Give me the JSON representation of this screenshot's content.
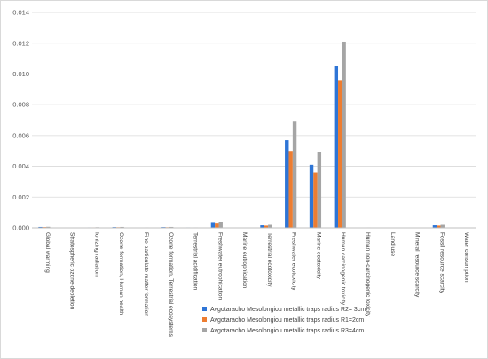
{
  "chart_data": {
    "type": "bar",
    "title": "",
    "xlabel": "",
    "ylabel": "",
    "ylim": [
      0,
      0.014
    ],
    "yticks": [
      "0.000",
      "0.002",
      "0.004",
      "0.006",
      "0.008",
      "0.010",
      "0.012",
      "0.014"
    ],
    "grid": true,
    "legend_position": "bottom-center",
    "categories": [
      "Global warming",
      "Stratospheric ozone depletion",
      "Ionizing radiation",
      "Ozone formation, Human health",
      "Fine particulate matter formation",
      "Ozone formation, Terrestrial ecosystems",
      "Terrestrial acidification",
      "Freshwater eutrophication",
      "Marine eutrophication",
      "Terrestrial ecotoxicity",
      "Freshwater ecotoxicity",
      "Marine ecotoxicity",
      "Human carcinogenic toxicity",
      "Human non-carcinogenic toxicity",
      "Land use",
      "Mineral resource scarcity",
      "Fossil resource scarcity",
      "Water consumption"
    ],
    "series": [
      {
        "name": "Avgotaracho Mesolongiou metallic traps radius R2= 3cm",
        "color": "#2e75d6",
        "values": [
          6e-05,
          0.0,
          3e-05,
          5e-05,
          2e-05,
          5e-05,
          3e-05,
          0.00032,
          0.0,
          0.00017,
          0.0057,
          0.0041,
          0.0105,
          2e-05,
          2e-05,
          0.0,
          0.00017,
          1e-05
        ]
      },
      {
        "name": "Avgotaracho Mesolongiou metallic traps radius R1=2cm",
        "color": "#ed7d31",
        "values": [
          5e-05,
          0.0,
          3e-05,
          4e-05,
          2e-05,
          4e-05,
          2e-05,
          0.00028,
          0.0,
          0.00015,
          0.005,
          0.0036,
          0.0096,
          2e-05,
          2e-05,
          0.0,
          0.00015,
          1e-05
        ]
      },
      {
        "name": "Avgotaracho Mesolongiou metallic traps radius R3=4cm",
        "color": "#a5a5a5",
        "values": [
          7e-05,
          0.0,
          4e-05,
          6e-05,
          3e-05,
          6e-05,
          3e-05,
          0.00038,
          0.0,
          0.0002,
          0.0069,
          0.0049,
          0.0121,
          3e-05,
          2e-05,
          0.0,
          0.0002,
          1e-05
        ]
      }
    ]
  }
}
